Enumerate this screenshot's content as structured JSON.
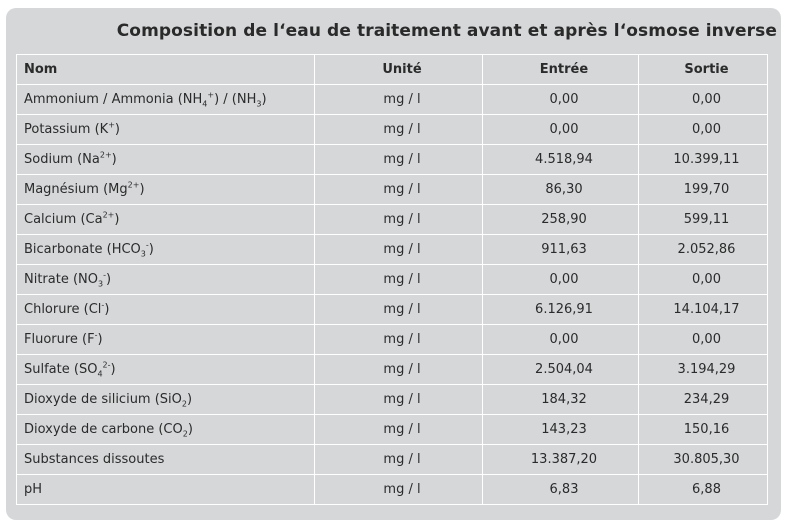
{
  "title": "Composition de l‘eau de traitement avant et après l‘osmose inverse",
  "headers": {
    "name": "Nom",
    "unit": "Unité",
    "in": "Entrée",
    "out": "Sortie"
  },
  "rows": [
    {
      "name": [
        [
          "Ammonium / Ammonia (NH",
          ""
        ],
        [
          "4",
          "sub"
        ],
        [
          "+",
          "sup"
        ],
        [
          ") / (NH",
          ""
        ],
        [
          "3",
          "sub"
        ],
        [
          ")",
          ""
        ]
      ],
      "unit": "mg / l",
      "in": "0,00",
      "out": "0,00"
    },
    {
      "name": [
        [
          "Potassium (K",
          ""
        ],
        [
          "+",
          "sup"
        ],
        [
          ")",
          ""
        ]
      ],
      "unit": "mg / l",
      "in": "0,00",
      "out": "0,00"
    },
    {
      "name": [
        [
          "Sodium (Na",
          ""
        ],
        [
          "2+",
          "sup"
        ],
        [
          ")",
          ""
        ]
      ],
      "unit": "mg / l",
      "in": "4.518,94",
      "out": "10.399,11"
    },
    {
      "name": [
        [
          "Magnésium (Mg",
          ""
        ],
        [
          "2+",
          "sup"
        ],
        [
          ")",
          ""
        ]
      ],
      "unit": "mg / l",
      "in": "86,30",
      "out": "199,70"
    },
    {
      "name": [
        [
          "Calcium (Ca",
          ""
        ],
        [
          "2+",
          "sup"
        ],
        [
          ")",
          ""
        ]
      ],
      "unit": "mg / l",
      "in": "258,90",
      "out": "599,11"
    },
    {
      "name": [
        [
          "Bicarbonate (HCO",
          ""
        ],
        [
          "3",
          "sub"
        ],
        [
          "-",
          "sup"
        ],
        [
          ")",
          ""
        ]
      ],
      "unit": "mg / l",
      "in": "911,63",
      "out": "2.052,86"
    },
    {
      "name": [
        [
          "Nitrate (NO",
          ""
        ],
        [
          "3",
          "sub"
        ],
        [
          "-",
          "sup"
        ],
        [
          ")",
          ""
        ]
      ],
      "unit": "mg / l",
      "in": "0,00",
      "out": "0,00"
    },
    {
      "name": [
        [
          "Chlorure (Cl",
          ""
        ],
        [
          "-",
          "sup"
        ],
        [
          ")",
          ""
        ]
      ],
      "unit": "mg / l",
      "in": "6.126,91",
      "out": "14.104,17"
    },
    {
      "name": [
        [
          "Fluorure (F",
          ""
        ],
        [
          "-",
          "sup"
        ],
        [
          ")",
          ""
        ]
      ],
      "unit": "mg / l",
      "in": "0,00",
      "out": "0,00"
    },
    {
      "name": [
        [
          "Sulfate (SO",
          ""
        ],
        [
          "4",
          "sub"
        ],
        [
          "2-",
          "sup"
        ],
        [
          ")",
          ""
        ]
      ],
      "unit": "mg / l",
      "in": "2.504,04",
      "out": "3.194,29"
    },
    {
      "name": [
        [
          "Dioxyde de silicium (SiO",
          ""
        ],
        [
          "2",
          "sub"
        ],
        [
          ")",
          ""
        ]
      ],
      "unit": "mg / l",
      "in": "184,32",
      "out": "234,29"
    },
    {
      "name": [
        [
          "Dioxyde de carbone (CO",
          ""
        ],
        [
          "2",
          "sub"
        ],
        [
          ")",
          ""
        ]
      ],
      "unit": "mg / l",
      "in": "143,23",
      "out": "150,16"
    },
    {
      "name": [
        [
          "Substances dissoutes",
          ""
        ]
      ],
      "unit": "mg / l",
      "in": "13.387,20",
      "out": "30.805,30"
    },
    {
      "name": [
        [
          "pH",
          ""
        ]
      ],
      "unit": "mg / l",
      "in": "6,83",
      "out": "6,88"
    }
  ]
}
